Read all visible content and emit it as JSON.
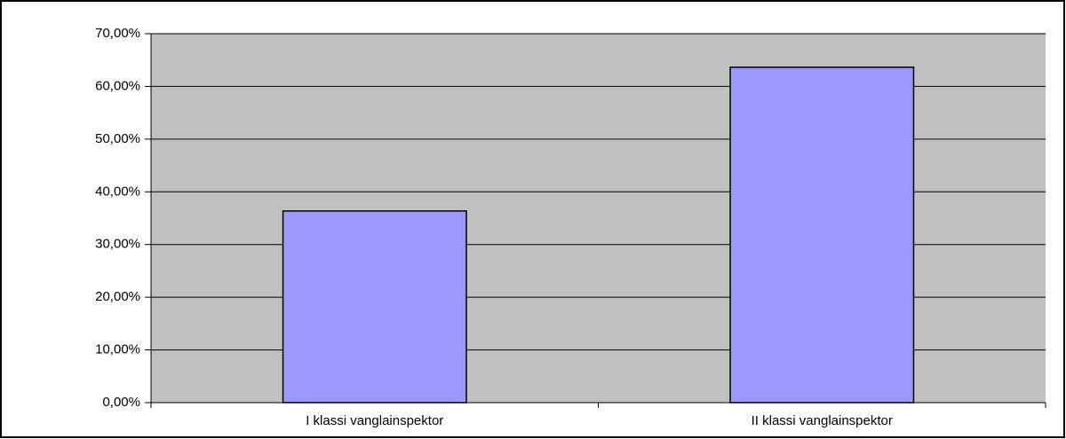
{
  "chart_data": {
    "type": "bar",
    "categories": [
      "I klassi vanglainspektor",
      "II klassi vanglainspektor"
    ],
    "values": [
      36.36,
      63.64
    ],
    "color": "#9999ff",
    "ylim": [
      0,
      70
    ],
    "yticks": [
      {
        "value": 0,
        "label": "0,00%"
      },
      {
        "value": 10,
        "label": "10,00%"
      },
      {
        "value": 20,
        "label": "20,00%"
      },
      {
        "value": 30,
        "label": "30,00%"
      },
      {
        "value": 40,
        "label": "40,00%"
      },
      {
        "value": 50,
        "label": "50,00%"
      },
      {
        "value": 60,
        "label": "60,00%"
      },
      {
        "value": 70,
        "label": "70,00%"
      }
    ],
    "grid": true
  }
}
